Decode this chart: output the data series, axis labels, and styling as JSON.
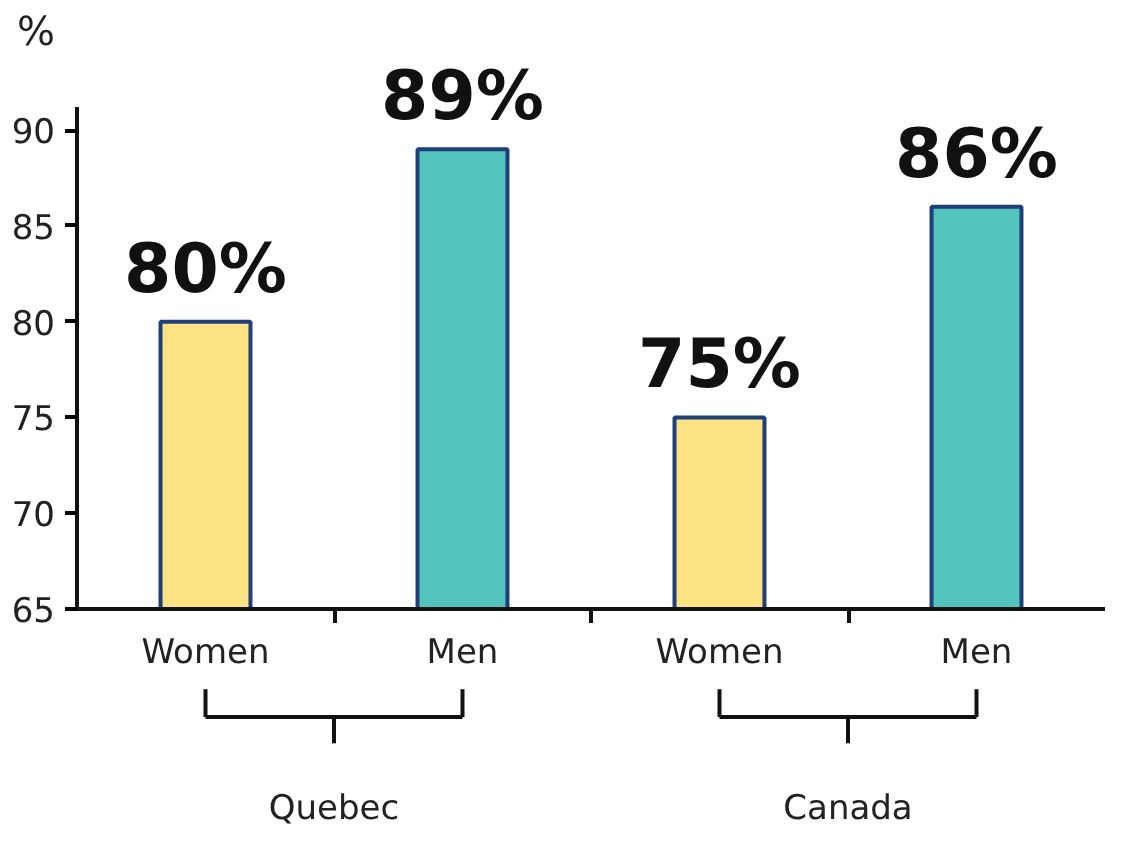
{
  "chart_data": {
    "type": "bar",
    "ylabel": "%",
    "categories": [
      "Women",
      "Men",
      "Women",
      "Men"
    ],
    "values": [
      80,
      89,
      75,
      86
    ],
    "colors": [
      "#fce283",
      "#52c4bb",
      "#fce283",
      "#52c4bb"
    ],
    "value_labels": [
      "80%",
      "89%",
      "75%",
      "86%"
    ],
    "annotations": [
      "Quebec",
      "Canada"
    ],
    "ylim": [
      65,
      91.2
    ],
    "yticks": [
      65,
      70,
      75,
      80,
      85,
      90
    ],
    "grid": false
  }
}
